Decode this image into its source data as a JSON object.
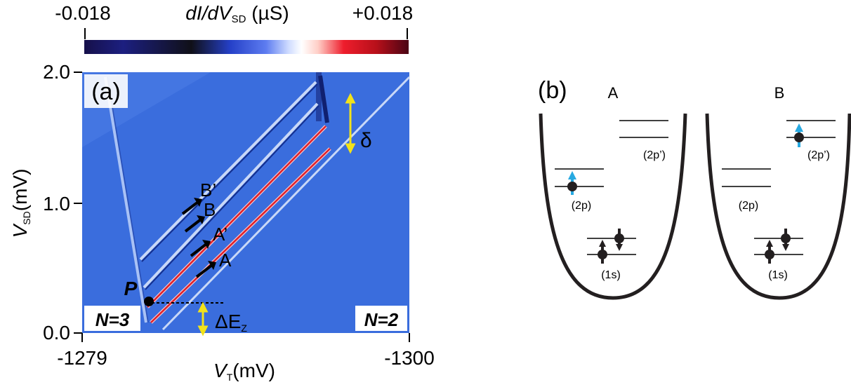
{
  "colorbar": {
    "min_label": "-0.018",
    "max_label": "+0.018",
    "title_main": "dI/dV",
    "title_sub": "SD",
    "title_unit": "(µS)",
    "stops": [
      "#16104a",
      "#1c1f80",
      "#101018",
      "#2540c8",
      "#5d7cf0",
      "#cfdcff",
      "#ffffff",
      "#ffd0c8",
      "#ee1d2c",
      "#b8101a",
      "#4a0414"
    ]
  },
  "panel_a": {
    "label": "(a)",
    "y_title": "V",
    "y_title_sub": "SD",
    "y_unit": "(mV)",
    "y_ticks": [
      "2.0",
      "1.0",
      "0.0"
    ],
    "x_title": "V",
    "x_title_sub": "T",
    "x_unit": "(mV)",
    "x_ticks": [
      "-1279",
      "-1300"
    ],
    "annotations": {
      "B_prime": "B’",
      "B": "B",
      "A_prime": "A’",
      "A": "A",
      "P": "P",
      "delta": "δ",
      "dEz_main": "ΔE",
      "dEz_sub": "Z",
      "N3": "N=3",
      "N2": "N=2"
    },
    "colors": {
      "background": "#3a6ddd",
      "arrow": "#f2e21a",
      "red_line": "#e0202a",
      "light_line": "#c9d8f7",
      "dark_line": "#142f8e"
    }
  },
  "panel_b": {
    "label": "(b)",
    "title_A": "A",
    "title_B": "B",
    "levels": {
      "two_p": "(2p)",
      "two_p_prime": "(2p’)",
      "one_s": "(1s)"
    },
    "colors": {
      "spin_up_highlight": "#27a9e1",
      "electron": "#231f20"
    }
  }
}
